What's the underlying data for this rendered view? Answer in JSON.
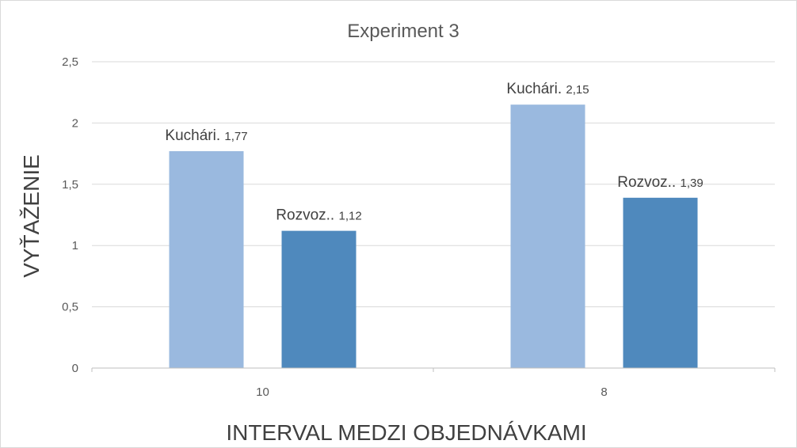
{
  "chart_data": {
    "type": "bar",
    "title": "Experiment 3",
    "xlabel": "INTERVAL MEDZI OBJEDNÁVKAMI",
    "ylabel": "VYŤAŽENIE",
    "categories": [
      "10",
      "8"
    ],
    "series": [
      {
        "name": "Kuchári",
        "label_prefix": "Kuchári.",
        "values": [
          1.77,
          2.15
        ],
        "color": "#9ab9df"
      },
      {
        "name": "Rozvoz.",
        "label_prefix": "Rozvoz..",
        "values": [
          1.12,
          1.39
        ],
        "color": "#4f89bd"
      }
    ],
    "data_labels": [
      [
        "1,77",
        "2,15"
      ],
      [
        "1,12",
        "1,39"
      ]
    ],
    "ylim": [
      0,
      2.5
    ],
    "yticks": [
      0,
      0.5,
      1,
      1.5,
      2,
      2.5
    ],
    "ytick_labels": [
      "0",
      "0,5",
      "1",
      "1,5",
      "2",
      "2,5"
    ],
    "grid": true,
    "legend": "none",
    "colors": {
      "grid": "#d9d9d9",
      "axis": "#bfbfbf",
      "text": "#595959"
    }
  }
}
